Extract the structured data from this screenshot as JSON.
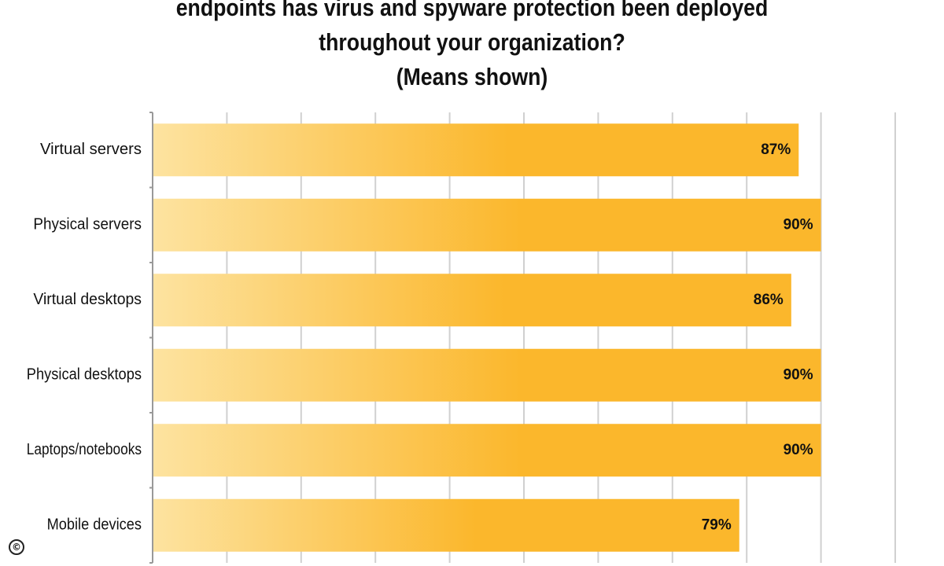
{
  "chart_data": {
    "type": "bar",
    "orientation": "horizontal",
    "title_lines": [
      "endpoints has virus and spyware protection been deployed",
      "throughout your organization?",
      "(Means shown)"
    ],
    "categories": [
      "Virtual servers",
      "Physical servers",
      "Virtual desktops",
      "Physical desktops",
      "Laptops/notebooks",
      "Mobile devices"
    ],
    "values": [
      87,
      90,
      86,
      90,
      90,
      79
    ],
    "value_labels": [
      "87%",
      "90%",
      "86%",
      "90%",
      "90%",
      "79%"
    ],
    "xlim": [
      0,
      100
    ],
    "grid": true,
    "bar_color_start": "#fde3a0",
    "bar_color_end": "#fbb72c"
  },
  "copyright_symbol": "©"
}
